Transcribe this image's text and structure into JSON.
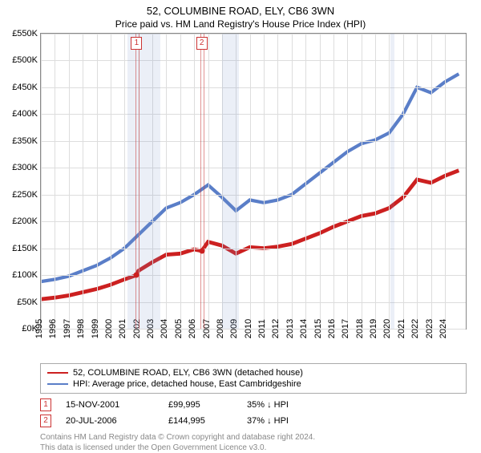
{
  "title": "52, COLUMBINE ROAD, ELY, CB6 3WN",
  "subtitle": "Price paid vs. HM Land Registry's House Price Index (HPI)",
  "chart": {
    "type": "line",
    "background_color": "#ffffff",
    "grid_color": "#dddddd",
    "border_color": "#888888",
    "y": {
      "min": 0,
      "max": 550,
      "step": 50,
      "prefix": "£",
      "suffix": "K",
      "ticks": [
        0,
        50,
        100,
        150,
        200,
        250,
        300,
        350,
        400,
        450,
        500,
        550
      ]
    },
    "x": {
      "min": 1995,
      "max": 2025.5,
      "ticks": [
        1995,
        1996,
        1997,
        1998,
        1999,
        2000,
        2001,
        2002,
        2003,
        2004,
        2005,
        2006,
        2007,
        2008,
        2009,
        2010,
        2011,
        2012,
        2013,
        2014,
        2015,
        2016,
        2017,
        2018,
        2019,
        2020,
        2021,
        2022,
        2023,
        2024
      ]
    },
    "shaded_bands": [
      {
        "from": 2001.2,
        "to": 2003.6
      },
      {
        "from": 2008.0,
        "to": 2009.2
      },
      {
        "from": 2020.1,
        "to": 2020.4
      }
    ],
    "shade_color": "rgba(120,150,200,0.15)",
    "sale_markers": [
      {
        "num": "1",
        "x": 2001.87,
        "band_from": 2001.8,
        "band_to": 2001.95
      },
      {
        "num": "2",
        "x": 2006.55,
        "band_from": 2006.48,
        "band_to": 2006.62
      }
    ],
    "marker_border_color": "#cc3333",
    "series": [
      {
        "id": "property",
        "label": "52, COLUMBINE ROAD, ELY, CB6 3WN (detached house)",
        "color": "#cc2020",
        "line_width": 1.6,
        "points": [
          [
            1995,
            55
          ],
          [
            1996,
            58
          ],
          [
            1997,
            62
          ],
          [
            1998,
            68
          ],
          [
            1999,
            74
          ],
          [
            2000,
            82
          ],
          [
            2001,
            92
          ],
          [
            2001.87,
            100
          ],
          [
            2002,
            108
          ],
          [
            2003,
            124
          ],
          [
            2004,
            138
          ],
          [
            2005,
            140
          ],
          [
            2006,
            148
          ],
          [
            2006.55,
            145
          ],
          [
            2007,
            162
          ],
          [
            2008,
            155
          ],
          [
            2009,
            140
          ],
          [
            2010,
            152
          ],
          [
            2011,
            150
          ],
          [
            2012,
            153
          ],
          [
            2013,
            158
          ],
          [
            2014,
            168
          ],
          [
            2015,
            178
          ],
          [
            2016,
            190
          ],
          [
            2017,
            200
          ],
          [
            2018,
            210
          ],
          [
            2019,
            215
          ],
          [
            2020,
            225
          ],
          [
            2021,
            245
          ],
          [
            2022,
            278
          ],
          [
            2023,
            272
          ],
          [
            2024,
            285
          ],
          [
            2025,
            295
          ]
        ],
        "sale_dots": [
          {
            "x": 2001.87,
            "y": 100
          },
          {
            "x": 2006.55,
            "y": 145
          }
        ],
        "dot_color": "#cc2020"
      },
      {
        "id": "hpi",
        "label": "HPI: Average price, detached house, East Cambridgeshire",
        "color": "#5a7ec8",
        "line_width": 1.4,
        "points": [
          [
            1995,
            88
          ],
          [
            1996,
            92
          ],
          [
            1997,
            98
          ],
          [
            1998,
            108
          ],
          [
            1999,
            118
          ],
          [
            2000,
            132
          ],
          [
            2001,
            150
          ],
          [
            2002,
            175
          ],
          [
            2003,
            200
          ],
          [
            2004,
            225
          ],
          [
            2005,
            235
          ],
          [
            2006,
            250
          ],
          [
            2007,
            268
          ],
          [
            2008,
            245
          ],
          [
            2009,
            220
          ],
          [
            2010,
            240
          ],
          [
            2011,
            235
          ],
          [
            2012,
            240
          ],
          [
            2013,
            250
          ],
          [
            2014,
            270
          ],
          [
            2015,
            290
          ],
          [
            2016,
            310
          ],
          [
            2017,
            330
          ],
          [
            2018,
            345
          ],
          [
            2019,
            352
          ],
          [
            2020,
            365
          ],
          [
            2021,
            400
          ],
          [
            2022,
            450
          ],
          [
            2023,
            440
          ],
          [
            2024,
            460
          ],
          [
            2025,
            475
          ]
        ]
      }
    ]
  },
  "legend": {
    "border_color": "#aaaaaa"
  },
  "sales": [
    {
      "num": "1",
      "date": "15-NOV-2001",
      "price": "£99,995",
      "delta": "35% ↓ HPI"
    },
    {
      "num": "2",
      "date": "20-JUL-2006",
      "price": "£144,995",
      "delta": "37% ↓ HPI"
    }
  ],
  "attribution": {
    "line1": "Contains HM Land Registry data © Crown copyright and database right 2024.",
    "line2": "This data is licensed under the Open Government Licence v3.0."
  }
}
